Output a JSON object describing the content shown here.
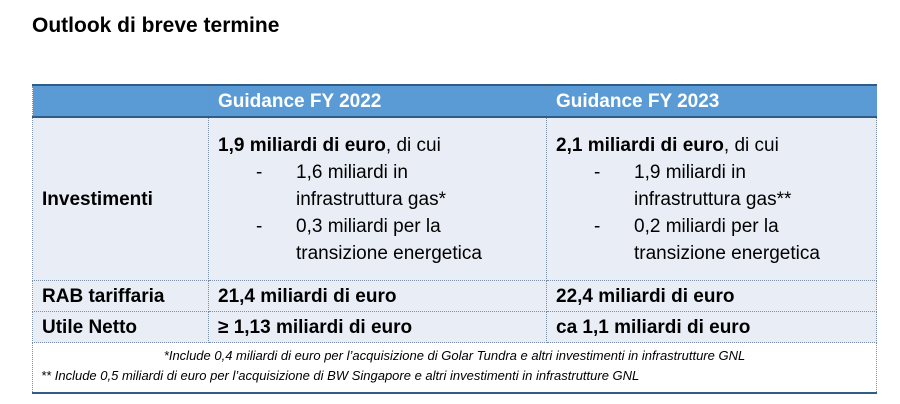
{
  "title": "Outlook di breve termine",
  "table": {
    "headers": [
      "",
      "Guidance FY 2022",
      "Guidance FY 2023"
    ],
    "investimenti": {
      "label": "Investimenti",
      "fy2022": {
        "lead_bold": "1,9 miliardi di euro",
        "lead_rest": ", di cui",
        "items": [
          {
            "dash": "-",
            "line1": "1,6 miliardi in",
            "line2": "infrastruttura gas*"
          },
          {
            "dash": "-",
            "line1": "0,3 miliardi per la",
            "line2": "transizione energetica"
          }
        ]
      },
      "fy2023": {
        "lead_bold": "2,1 miliardi di euro",
        "lead_rest": ", di cui",
        "items": [
          {
            "dash": "-",
            "line1": "1,9 miliardi in",
            "line2": "infrastruttura gas**"
          },
          {
            "dash": "-",
            "line1": "0,2 miliardi per la",
            "line2": "transizione energetica"
          }
        ]
      }
    },
    "rab": {
      "label": "RAB tariffaria",
      "fy2022": "21,4 miliardi di euro",
      "fy2023": "22,4 miliardi di euro"
    },
    "utile": {
      "label": "Utile Netto",
      "fy2022": "≥ 1,13 miliardi di euro",
      "fy2023": "ca 1,1 miliardi di euro"
    },
    "notes": [
      "*Include 0,4 miliardi di euro per l’acquisizione di Golar Tundra e altri investimenti in infrastrutture GNL",
      "** Include 0,5 miliardi di euro per l’acquisizione di BW Singapore e altri investimenti in infrastrutture GNL"
    ]
  }
}
